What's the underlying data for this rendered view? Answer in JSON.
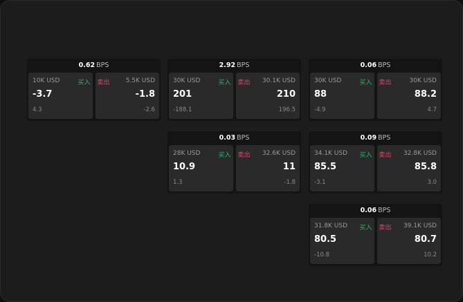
{
  "colors": {
    "buy": "#2fb36a",
    "sell": "#e0466e",
    "background": "#1c1c1c"
  },
  "labels": {
    "buy": "买入",
    "sell": "卖出",
    "unit": "BPS"
  },
  "cards": [
    {
      "spread": "0.62",
      "buy": {
        "amount": "10K USD",
        "price": "-3.7",
        "change": "4.3"
      },
      "sell": {
        "amount": "5.5K USD",
        "price": "-1.8",
        "change": "-2.6"
      }
    },
    {
      "spread": "2.92",
      "buy": {
        "amount": "30K USD",
        "price": "201",
        "change": "-188.1"
      },
      "sell": {
        "amount": "30.1K USD",
        "price": "210",
        "change": "196.5"
      }
    },
    {
      "spread": "0.06",
      "buy": {
        "amount": "30K USD",
        "price": "88",
        "change": "-4.9"
      },
      "sell": {
        "amount": "30K USD",
        "price": "88.2",
        "change": "4.7"
      }
    },
    {
      "spread": "0.03",
      "buy": {
        "amount": "28K USD",
        "price": "10.9",
        "change": "1.3"
      },
      "sell": {
        "amount": "32.6K USD",
        "price": "11",
        "change": "-1.8"
      }
    },
    {
      "spread": "0.09",
      "buy": {
        "amount": "34.1K USD",
        "price": "85.5",
        "change": "-3.1"
      },
      "sell": {
        "amount": "32.8K USD",
        "price": "85.8",
        "change": "3.0"
      }
    },
    {
      "spread": "0.06",
      "buy": {
        "amount": "31.8K USD",
        "price": "80.5",
        "change": "-10.8"
      },
      "sell": {
        "amount": "39.1K USD",
        "price": "80.7",
        "change": "10.2"
      }
    }
  ]
}
